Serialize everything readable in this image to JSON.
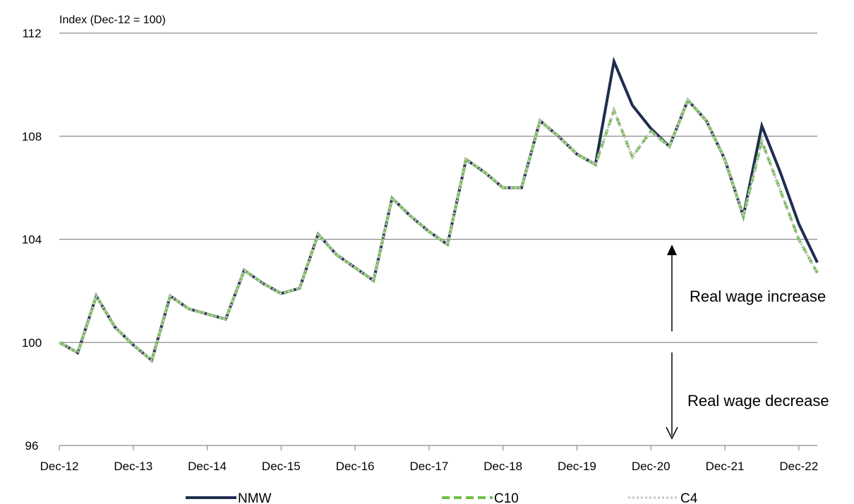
{
  "chart_data": {
    "type": "line",
    "title": "",
    "ylabel": "Index (Dec-12 = 100)",
    "xlabel": "",
    "ylim": [
      96,
      112
    ],
    "yticks": [
      96,
      100,
      104,
      108,
      112
    ],
    "grid": "horizontal",
    "legend_position": "bottom",
    "x_tick_labels": [
      "Dec-12",
      "Dec-13",
      "Dec-14",
      "Dec-15",
      "Dec-16",
      "Dec-17",
      "Dec-18",
      "Dec-19",
      "Dec-20",
      "Dec-21",
      "Dec-22"
    ],
    "x": [
      "Dec-12",
      "Mar-13",
      "Jun-13",
      "Sep-13",
      "Dec-13",
      "Mar-14",
      "Jun-14",
      "Sep-14",
      "Dec-14",
      "Mar-15",
      "Jun-15",
      "Sep-15",
      "Dec-15",
      "Mar-16",
      "Jun-16",
      "Sep-16",
      "Dec-16",
      "Mar-17",
      "Jun-17",
      "Sep-17",
      "Dec-17",
      "Mar-18",
      "Jun-18",
      "Sep-18",
      "Dec-18",
      "Mar-19",
      "Jun-19",
      "Sep-19",
      "Dec-19",
      "Mar-20",
      "Jun-20",
      "Sep-20",
      "Dec-20",
      "Mar-21",
      "Jun-21",
      "Sep-21",
      "Dec-21",
      "Mar-22",
      "Jun-22",
      "Sep-22",
      "Dec-22",
      "Mar-23"
    ],
    "series": [
      {
        "name": "NMW",
        "color": "#1f2d4e",
        "style": "solid",
        "values": [
          100.0,
          99.6,
          101.8,
          100.6,
          99.9,
          99.3,
          101.8,
          101.3,
          101.1,
          100.9,
          102.8,
          102.3,
          101.9,
          102.1,
          104.2,
          103.4,
          102.9,
          102.4,
          105.6,
          104.9,
          104.3,
          103.8,
          107.1,
          106.6,
          106.0,
          106.0,
          108.6,
          108.0,
          107.3,
          106.9,
          110.9,
          109.2,
          108.3,
          107.6,
          109.4,
          108.6,
          107.1,
          104.9,
          108.4,
          106.6,
          104.6,
          103.1
        ]
      },
      {
        "name": "C10",
        "color": "#6fbf4a",
        "style": "dashed",
        "values": [
          100.0,
          99.6,
          101.8,
          100.6,
          99.9,
          99.3,
          101.8,
          101.3,
          101.1,
          100.9,
          102.8,
          102.3,
          101.9,
          102.1,
          104.2,
          103.4,
          102.9,
          102.4,
          105.6,
          104.9,
          104.3,
          103.8,
          107.1,
          106.6,
          106.0,
          106.0,
          108.6,
          108.0,
          107.3,
          106.9,
          109.0,
          107.2,
          108.2,
          107.6,
          109.4,
          108.6,
          107.1,
          104.9,
          107.8,
          105.9,
          104.0,
          102.7
        ]
      },
      {
        "name": "C4",
        "color": "#c4c4c4",
        "style": "dotted",
        "values": [
          100.0,
          99.6,
          101.8,
          100.6,
          99.9,
          99.3,
          101.8,
          101.3,
          101.1,
          100.9,
          102.8,
          102.3,
          101.9,
          102.1,
          104.2,
          103.4,
          102.9,
          102.4,
          105.6,
          104.9,
          104.3,
          103.8,
          107.1,
          106.6,
          106.0,
          106.0,
          108.6,
          108.0,
          107.3,
          106.9,
          109.0,
          107.2,
          108.2,
          107.6,
          109.4,
          108.6,
          107.1,
          104.9,
          107.8,
          105.9,
          104.0,
          102.7
        ]
      }
    ],
    "annotations": {
      "increase": "Real wage increase",
      "decrease": "Real wage decrease"
    }
  }
}
